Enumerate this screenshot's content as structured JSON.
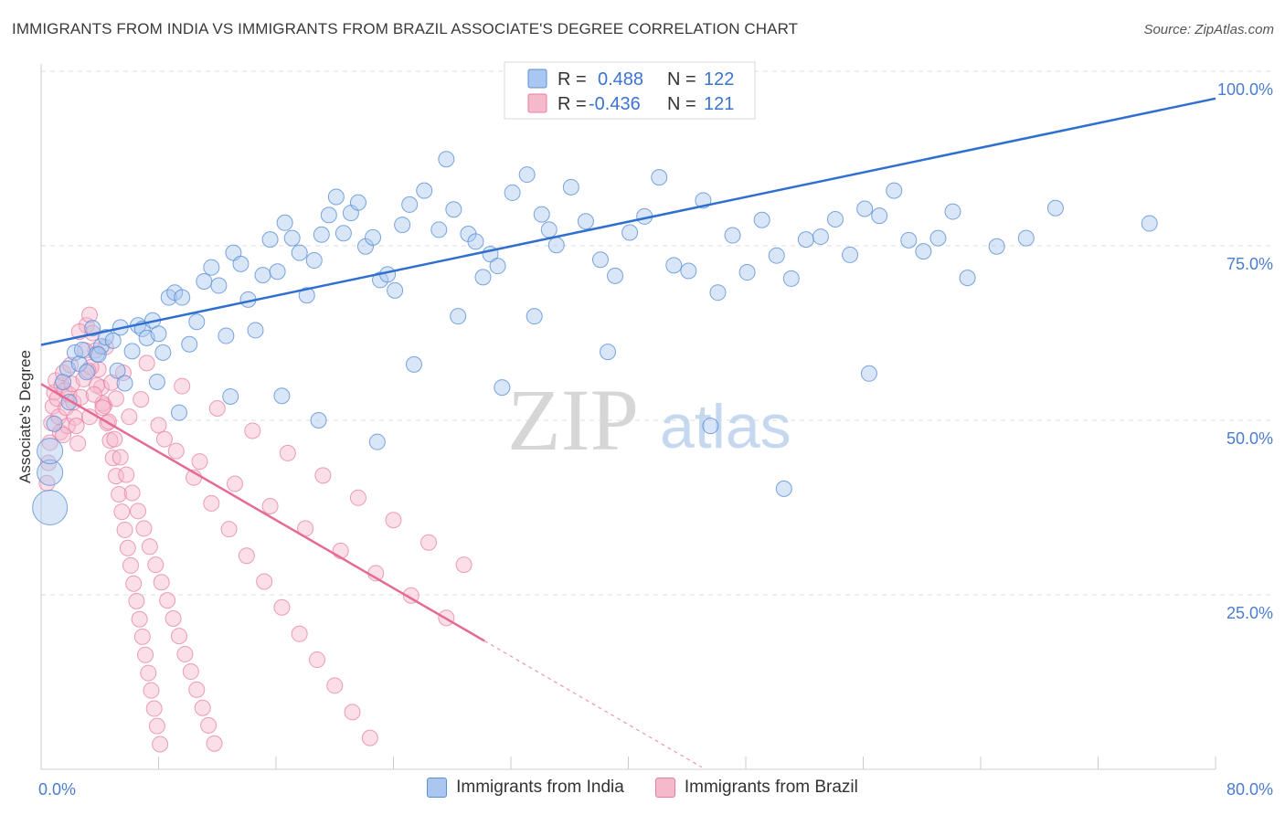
{
  "title": "IMMIGRANTS FROM INDIA VS IMMIGRANTS FROM BRAZIL ASSOCIATE'S DEGREE CORRELATION CHART",
  "source": "Source: ZipAtlas.com",
  "watermark": {
    "zip": "ZIP",
    "atlas": "atlas"
  },
  "colors": {
    "india_fill": "#a9c7f0",
    "india_stroke": "#5b8fd6",
    "india_line": "#2f6fd0",
    "brazil_fill": "#f6b9cb",
    "brazil_stroke": "#e77ea0",
    "brazil_line": "#e56a94",
    "tick_text": "#4a7cd1",
    "grid": "#dddddd"
  },
  "legend": {
    "india": {
      "r_label": "R =",
      "r_value": "0.488",
      "n_label": "N =",
      "n_value": "122"
    },
    "brazil": {
      "r_label": "R =",
      "r_value": "-0.436",
      "n_label": "N =",
      "n_value": "121"
    }
  },
  "bottom_legend": {
    "india": "Immigrants from India",
    "brazil": "Immigrants from Brazil"
  },
  "chart_data": {
    "type": "scatter",
    "title": "IMMIGRANTS FROM INDIA VS IMMIGRANTS FROM BRAZIL ASSOCIATE'S DEGREE CORRELATION CHART",
    "xlabel": "",
    "ylabel": "Associate's Degree",
    "xlim": [
      0,
      80
    ],
    "ylim": [
      0,
      100
    ],
    "x_tick_labels": [
      "0.0%",
      "80.0%"
    ],
    "y_tick_labels": [
      "25.0%",
      "50.0%",
      "75.0%",
      "100.0%"
    ],
    "y_ticks": [
      25,
      50,
      75,
      100
    ],
    "grid": true,
    "legend_position": "top-center",
    "series": [
      {
        "name": "Immigrants from India",
        "R": 0.488,
        "N": 122,
        "trend": {
          "x": [
            0,
            80
          ],
          "y": [
            60.8,
            96.1
          ]
        },
        "points": [
          [
            0.6,
            37.5
          ],
          [
            0.6,
            42.5
          ],
          [
            0.6,
            45.6
          ],
          [
            0.9,
            49.5
          ],
          [
            1.5,
            55.5
          ],
          [
            1.8,
            57.4
          ],
          [
            1.9,
            52.6
          ],
          [
            2.3,
            59.7
          ],
          [
            2.6,
            58.1
          ],
          [
            2.8,
            60.1
          ],
          [
            3.1,
            56.9
          ],
          [
            3.5,
            63.2
          ],
          [
            3.8,
            59.5
          ],
          [
            4.1,
            60.6
          ],
          [
            4.4,
            61.9
          ],
          [
            4.9,
            61.4
          ],
          [
            5.2,
            57.1
          ],
          [
            5.7,
            55.3
          ],
          [
            6.2,
            59.9
          ],
          [
            6.6,
            63.6
          ],
          [
            6.9,
            63.1
          ],
          [
            7.2,
            61.8
          ],
          [
            7.6,
            64.3
          ],
          [
            8.0,
            62.4
          ],
          [
            8.3,
            59.7
          ],
          [
            8.7,
            67.6
          ],
          [
            9.1,
            68.3
          ],
          [
            9.6,
            67.6
          ],
          [
            10.1,
            60.9
          ],
          [
            10.6,
            64.1
          ],
          [
            11.1,
            69.9
          ],
          [
            11.6,
            71.9
          ],
          [
            12.1,
            69.3
          ],
          [
            12.6,
            62.1
          ],
          [
            13.1,
            74.0
          ],
          [
            13.6,
            72.4
          ],
          [
            14.1,
            67.3
          ],
          [
            14.6,
            62.9
          ],
          [
            15.1,
            70.8
          ],
          [
            15.6,
            75.9
          ],
          [
            16.1,
            71.3
          ],
          [
            16.6,
            78.3
          ],
          [
            17.1,
            76.1
          ],
          [
            17.6,
            74.0
          ],
          [
            18.1,
            67.9
          ],
          [
            18.6,
            72.9
          ],
          [
            19.1,
            76.6
          ],
          [
            19.6,
            79.4
          ],
          [
            20.1,
            82.0
          ],
          [
            20.6,
            76.8
          ],
          [
            21.1,
            79.7
          ],
          [
            21.6,
            81.2
          ],
          [
            22.1,
            74.9
          ],
          [
            22.6,
            76.2
          ],
          [
            23.1,
            70.1
          ],
          [
            23.6,
            70.9
          ],
          [
            24.1,
            68.6
          ],
          [
            24.6,
            78.0
          ],
          [
            25.1,
            80.9
          ],
          [
            26.1,
            82.9
          ],
          [
            27.1,
            77.3
          ],
          [
            27.6,
            87.4
          ],
          [
            28.1,
            80.2
          ],
          [
            29.1,
            76.7
          ],
          [
            29.6,
            75.6
          ],
          [
            30.1,
            70.5
          ],
          [
            30.6,
            73.8
          ],
          [
            31.1,
            72.1
          ],
          [
            32.1,
            82.6
          ],
          [
            33.1,
            85.2
          ],
          [
            34.1,
            79.5
          ],
          [
            34.6,
            77.3
          ],
          [
            35.1,
            75.1
          ],
          [
            36.1,
            83.4
          ],
          [
            37.1,
            78.5
          ],
          [
            38.1,
            73.0
          ],
          [
            39.1,
            70.7
          ],
          [
            40.1,
            76.9
          ],
          [
            41.1,
            79.2
          ],
          [
            42.1,
            84.8
          ],
          [
            43.1,
            72.2
          ],
          [
            44.1,
            71.4
          ],
          [
            45.1,
            81.5
          ],
          [
            46.1,
            68.3
          ],
          [
            47.1,
            76.5
          ],
          [
            48.1,
            71.2
          ],
          [
            49.1,
            78.7
          ],
          [
            50.1,
            73.6
          ],
          [
            51.1,
            70.3
          ],
          [
            52.1,
            75.9
          ],
          [
            53.1,
            76.3
          ],
          [
            54.1,
            78.8
          ],
          [
            55.1,
            73.7
          ],
          [
            56.1,
            80.3
          ],
          [
            57.1,
            79.3
          ],
          [
            58.1,
            82.9
          ],
          [
            59.1,
            75.8
          ],
          [
            60.1,
            74.2
          ],
          [
            61.1,
            76.1
          ],
          [
            62.1,
            79.9
          ],
          [
            63.1,
            70.4
          ],
          [
            65.1,
            74.9
          ],
          [
            67.1,
            76.1
          ],
          [
            69.1,
            80.4
          ],
          [
            75.5,
            78.2
          ],
          [
            3.9,
            59.4
          ],
          [
            5.4,
            63.3
          ],
          [
            7.9,
            55.5
          ],
          [
            9.4,
            51.1
          ],
          [
            12.9,
            53.4
          ],
          [
            16.4,
            53.5
          ],
          [
            18.9,
            50.0
          ],
          [
            22.9,
            46.9
          ],
          [
            28.4,
            64.9
          ],
          [
            33.6,
            64.9
          ],
          [
            38.6,
            59.8
          ],
          [
            45.6,
            49.2
          ],
          [
            50.6,
            40.2
          ],
          [
            56.4,
            56.7
          ],
          [
            25.4,
            58.0
          ],
          [
            31.4,
            54.7
          ]
        ]
      },
      {
        "name": "Immigrants from Brazil",
        "R": -0.436,
        "N": 121,
        "trend": {
          "x": [
            0,
            30.2
          ],
          "y": [
            55.2,
            18.4
          ]
        },
        "trend_dashed": {
          "x": [
            30.2,
            45.0
          ],
          "y": [
            18.4,
            0.3
          ]
        },
        "points": [
          [
            0.4,
            41.0
          ],
          [
            0.5,
            43.9
          ],
          [
            0.6,
            46.8
          ],
          [
            0.7,
            49.6
          ],
          [
            0.8,
            52.0
          ],
          [
            0.9,
            54.0
          ],
          [
            1.0,
            55.7
          ],
          [
            1.1,
            53.1
          ],
          [
            1.2,
            50.5
          ],
          [
            1.3,
            48.3
          ],
          [
            1.4,
            55.0
          ],
          [
            1.5,
            56.8
          ],
          [
            1.6,
            54.3
          ],
          [
            1.7,
            51.8
          ],
          [
            1.8,
            49.2
          ],
          [
            1.9,
            53.7
          ],
          [
            2.0,
            57.9
          ],
          [
            2.1,
            55.2
          ],
          [
            2.2,
            52.6
          ],
          [
            2.3,
            50.4
          ],
          [
            2.5,
            46.7
          ],
          [
            2.7,
            53.3
          ],
          [
            2.9,
            55.9
          ],
          [
            3.1,
            63.6
          ],
          [
            3.3,
            65.1
          ],
          [
            3.5,
            62.5
          ],
          [
            3.7,
            60.0
          ],
          [
            3.9,
            57.3
          ],
          [
            4.1,
            54.7
          ],
          [
            4.3,
            52.1
          ],
          [
            4.5,
            49.6
          ],
          [
            4.7,
            47.1
          ],
          [
            4.9,
            44.6
          ],
          [
            5.1,
            42.0
          ],
          [
            5.3,
            39.4
          ],
          [
            5.5,
            36.9
          ],
          [
            5.7,
            34.3
          ],
          [
            5.9,
            31.7
          ],
          [
            6.1,
            29.2
          ],
          [
            6.3,
            26.6
          ],
          [
            6.5,
            24.1
          ],
          [
            6.7,
            21.5
          ],
          [
            6.9,
            19.0
          ],
          [
            7.1,
            16.4
          ],
          [
            7.3,
            13.8
          ],
          [
            7.5,
            11.3
          ],
          [
            7.7,
            8.7
          ],
          [
            7.9,
            6.2
          ],
          [
            8.1,
            3.6
          ],
          [
            8.3,
            1.0
          ],
          [
            2.6,
            62.7
          ],
          [
            3.0,
            60.0
          ],
          [
            3.4,
            57.6
          ],
          [
            3.8,
            55.0
          ],
          [
            4.2,
            52.4
          ],
          [
            4.6,
            49.8
          ],
          [
            5.0,
            47.3
          ],
          [
            5.4,
            44.7
          ],
          [
            5.8,
            42.2
          ],
          [
            6.2,
            39.6
          ],
          [
            6.6,
            37.0
          ],
          [
            7.0,
            34.5
          ],
          [
            7.4,
            31.9
          ],
          [
            7.8,
            29.3
          ],
          [
            8.2,
            26.8
          ],
          [
            8.6,
            24.2
          ],
          [
            9.0,
            21.6
          ],
          [
            9.4,
            19.1
          ],
          [
            9.8,
            16.5
          ],
          [
            10.2,
            14.0
          ],
          [
            10.6,
            11.4
          ],
          [
            11.0,
            8.8
          ],
          [
            11.4,
            6.3
          ],
          [
            11.8,
            3.7
          ],
          [
            12.2,
            1.2
          ],
          [
            3.2,
            57.1
          ],
          [
            4.4,
            60.5
          ],
          [
            5.6,
            56.8
          ],
          [
            6.8,
            53.0
          ],
          [
            8.0,
            49.3
          ],
          [
            9.2,
            45.6
          ],
          [
            10.4,
            41.8
          ],
          [
            11.6,
            38.1
          ],
          [
            12.8,
            34.4
          ],
          [
            14.0,
            30.6
          ],
          [
            15.2,
            26.9
          ],
          [
            16.4,
            23.2
          ],
          [
            17.6,
            19.4
          ],
          [
            18.8,
            15.7
          ],
          [
            20.0,
            12.0
          ],
          [
            21.2,
            8.2
          ],
          [
            22.4,
            4.5
          ],
          [
            3.6,
            53.7
          ],
          [
            6.0,
            50.5
          ],
          [
            8.4,
            47.3
          ],
          [
            10.8,
            44.1
          ],
          [
            13.2,
            40.9
          ],
          [
            15.6,
            37.7
          ],
          [
            18.0,
            34.5
          ],
          [
            20.4,
            31.3
          ],
          [
            22.8,
            28.1
          ],
          [
            25.2,
            24.9
          ],
          [
            27.6,
            21.7
          ],
          [
            4.8,
            55.4
          ],
          [
            7.2,
            58.2
          ],
          [
            9.6,
            54.9
          ],
          [
            12.0,
            51.7
          ],
          [
            14.4,
            48.5
          ],
          [
            16.8,
            45.3
          ],
          [
            19.2,
            42.1
          ],
          [
            21.6,
            38.9
          ],
          [
            24.0,
            35.7
          ],
          [
            26.4,
            32.5
          ],
          [
            28.8,
            29.3
          ],
          [
            1.5,
            47.9
          ],
          [
            2.4,
            49.2
          ],
          [
            3.3,
            50.5
          ],
          [
            4.2,
            51.8
          ],
          [
            5.1,
            53.1
          ]
        ]
      }
    ]
  }
}
